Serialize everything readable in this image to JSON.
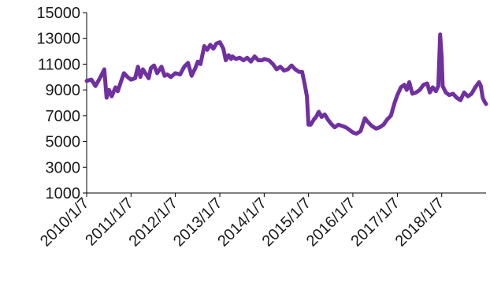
{
  "chart_data": {
    "type": "line",
    "title": "",
    "xlabel": "",
    "ylabel": "",
    "ylim": [
      1000,
      15000
    ],
    "yticks": [
      "15000",
      "13000",
      "11000",
      "9000",
      "7000",
      "5000",
      "3000",
      "1000"
    ],
    "xticks": [
      "2010/1/7",
      "2011/1/7",
      "2012/1/7",
      "2013/1/7",
      "2014/1/7",
      "2015/1/7",
      "2016/1/7",
      "2017/1/7",
      "2018/1/7"
    ],
    "xrange": [
      "2010-01-07",
      "2019-01-07"
    ],
    "grid": false,
    "legend": "none",
    "series": [
      {
        "color": "#7030a0",
        "x": [
          "2010-01-07",
          "2010-02-15",
          "2010-03-20",
          "2010-05-01",
          "2010-06-01",
          "2010-06-20",
          "2010-07-10",
          "2010-08-01",
          "2010-09-01",
          "2010-09-20",
          "2010-10-15",
          "2010-11-10",
          "2010-12-10",
          "2011-01-07",
          "2011-02-10",
          "2011-03-05",
          "2011-03-25",
          "2011-04-15",
          "2011-05-05",
          "2011-06-01",
          "2011-06-20",
          "2011-07-15",
          "2011-08-10",
          "2011-09-15",
          "2011-10-10",
          "2011-11-01",
          "2011-12-01",
          "2012-01-07",
          "2012-02-15",
          "2012-03-20",
          "2012-04-20",
          "2012-05-20",
          "2012-06-20",
          "2012-07-10",
          "2012-08-01",
          "2012-09-01",
          "2012-09-25",
          "2012-10-20",
          "2012-11-15",
          "2012-12-10",
          "2013-01-07",
          "2013-02-05",
          "2013-02-25",
          "2013-03-20",
          "2013-04-10",
          "2013-04-20",
          "2013-05-20",
          "2013-06-20",
          "2013-07-20",
          "2013-08-20",
          "2013-09-20",
          "2013-10-20",
          "2013-11-20",
          "2013-12-20",
          "2014-01-07",
          "2014-02-15",
          "2014-03-20",
          "2014-04-20",
          "2014-05-20",
          "2014-06-20",
          "2014-07-20",
          "2014-08-20",
          "2014-09-20",
          "2014-10-20",
          "2014-11-15",
          "2014-12-05",
          "2014-12-25",
          "2015-01-07",
          "2015-01-25",
          "2015-02-20",
          "2015-03-10",
          "2015-04-01",
          "2015-04-25",
          "2015-05-20",
          "2015-06-15",
          "2015-07-10",
          "2015-08-10",
          "2015-09-10",
          "2015-10-10",
          "2015-11-10",
          "2015-12-10",
          "2016-01-07",
          "2016-02-05",
          "2016-03-10",
          "2016-04-15",
          "2016-05-10",
          "2016-06-10",
          "2016-07-15",
          "2016-08-15",
          "2016-09-15",
          "2016-10-15",
          "2016-11-15",
          "2016-12-15",
          "2017-01-07",
          "2017-02-05",
          "2017-03-05",
          "2017-03-25",
          "2017-04-15",
          "2017-05-10",
          "2017-06-10",
          "2017-07-10",
          "2017-08-10",
          "2017-09-10",
          "2017-10-01",
          "2017-10-25",
          "2017-11-20",
          "2017-12-10",
          "2017-12-25",
          "2018-01-07",
          "2018-01-15",
          "2018-01-25",
          "2018-02-10",
          "2018-03-10",
          "2018-04-10",
          "2018-05-10",
          "2018-06-10",
          "2018-07-10",
          "2018-08-10",
          "2018-09-10",
          "2018-10-10",
          "2018-11-10",
          "2018-11-25",
          "2018-12-10",
          "2018-12-25",
          "2019-01-07"
        ],
        "y": [
          9700,
          9800,
          9300,
          10000,
          10600,
          8400,
          9000,
          8500,
          9200,
          8900,
          9600,
          10300,
          10000,
          9800,
          9900,
          10800,
          10000,
          10600,
          10300,
          9900,
          10700,
          10900,
          10300,
          10800,
          10100,
          10200,
          10000,
          10300,
          10200,
          10800,
          11100,
          10100,
          10700,
          11200,
          11000,
          12400,
          12100,
          12500,
          12200,
          12600,
          12700,
          12200,
          11300,
          11700,
          11400,
          11600,
          11400,
          11500,
          11300,
          11500,
          11200,
          11600,
          11300,
          11300,
          11400,
          11300,
          11000,
          10600,
          10800,
          10500,
          10600,
          10900,
          10600,
          10400,
          10400,
          9500,
          8500,
          6300,
          6300,
          6700,
          6900,
          7300,
          6900,
          7100,
          6700,
          6400,
          6100,
          6300,
          6200,
          6100,
          5900,
          5700,
          5600,
          5800,
          6800,
          6500,
          6200,
          6000,
          6100,
          6300,
          6700,
          7000,
          8000,
          8600,
          9200,
          9400,
          9000,
          9600,
          8700,
          8800,
          9000,
          9400,
          9500,
          8800,
          9200,
          8900,
          9300,
          13300,
          11500,
          9300,
          9100,
          8800,
          8600,
          8700,
          8400,
          8200,
          8800,
          8500,
          8700,
          9200,
          9600,
          9300,
          8400,
          8100,
          7900
        ]
      }
    ]
  }
}
